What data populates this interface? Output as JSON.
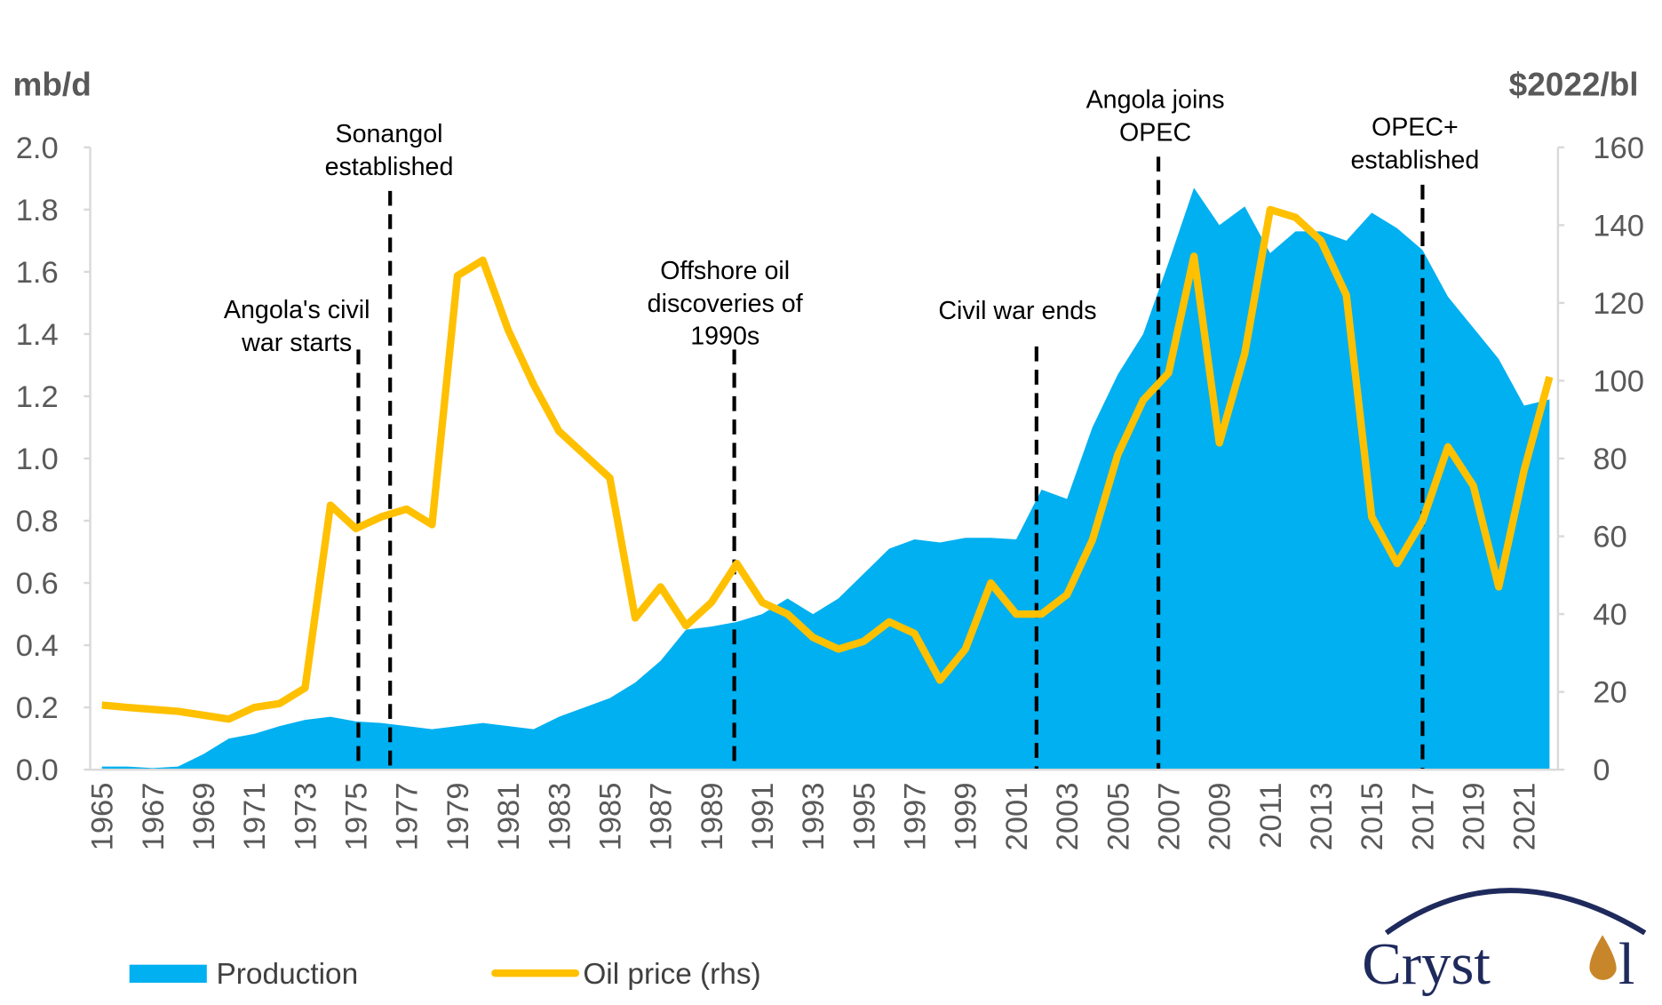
{
  "chart_data": {
    "type": "area+line",
    "left_axis_label": "mb/d",
    "right_axis_label": "$2022/bl",
    "ylim_left": [
      0,
      2.0
    ],
    "ylim_right": [
      0,
      160
    ],
    "yticks_left": [
      "0.0",
      "0.2",
      "0.4",
      "0.6",
      "0.8",
      "1.0",
      "1.2",
      "1.4",
      "1.6",
      "1.8",
      "2.0"
    ],
    "yticks_right": [
      "0",
      "20",
      "40",
      "60",
      "80",
      "100",
      "120",
      "140",
      "160"
    ],
    "x": [
      1965,
      1966,
      1967,
      1968,
      1969,
      1970,
      1971,
      1972,
      1973,
      1974,
      1975,
      1976,
      1977,
      1978,
      1979,
      1980,
      1981,
      1982,
      1983,
      1984,
      1985,
      1986,
      1987,
      1988,
      1989,
      1990,
      1991,
      1992,
      1993,
      1994,
      1995,
      1996,
      1997,
      1998,
      1999,
      2000,
      2001,
      2002,
      2003,
      2004,
      2005,
      2006,
      2007,
      2008,
      2009,
      2010,
      2011,
      2012,
      2013,
      2014,
      2015,
      2016,
      2017,
      2018,
      2019,
      2020,
      2021,
      2022
    ],
    "xtick_labels": [
      "1965",
      "1967",
      "1969",
      "1971",
      "1973",
      "1975",
      "1977",
      "1979",
      "1981",
      "1983",
      "1985",
      "1987",
      "1989",
      "1991",
      "1993",
      "1995",
      "1997",
      "1999",
      "2001",
      "2003",
      "2005",
      "2007",
      "2009",
      "2011",
      "2013",
      "2015",
      "2017",
      "2019",
      "2021"
    ],
    "series": [
      {
        "name": "Production",
        "type": "area",
        "axis": "left",
        "color": "#00B0F0",
        "values": [
          0.01,
          0.01,
          0.005,
          0.01,
          0.05,
          0.1,
          0.115,
          0.14,
          0.16,
          0.17,
          0.155,
          0.15,
          0.14,
          0.13,
          0.14,
          0.15,
          0.14,
          0.13,
          0.17,
          0.2,
          0.23,
          0.28,
          0.35,
          0.45,
          0.46,
          0.475,
          0.5,
          0.55,
          0.5,
          0.55,
          0.63,
          0.71,
          0.74,
          0.73,
          0.745,
          0.745,
          0.74,
          0.9,
          0.87,
          1.1,
          1.27,
          1.4,
          1.63,
          1.87,
          1.75,
          1.81,
          1.66,
          1.73,
          1.73,
          1.7,
          1.79,
          1.74,
          1.67,
          1.52,
          1.42,
          1.32,
          1.17,
          1.19
        ]
      },
      {
        "name": "Oil price (rhs)",
        "type": "line",
        "axis": "right",
        "color": "#FFC000",
        "values": [
          16.6,
          16,
          15.5,
          15,
          14,
          13,
          16,
          17,
          21,
          68,
          62,
          65,
          67,
          63,
          127,
          131,
          113,
          99,
          87,
          81,
          75,
          39,
          47,
          37,
          43,
          53,
          43,
          40,
          34,
          31,
          33,
          38,
          35,
          23,
          31,
          48,
          40,
          40,
          45,
          59,
          81,
          95,
          102,
          132,
          84,
          107,
          144,
          142,
          136,
          122,
          65,
          53,
          64,
          83,
          73,
          47,
          77,
          101
        ]
      }
    ],
    "annotations": [
      {
        "year": 1975.1,
        "top": 1.35,
        "lines": [
          "Angola's civil",
          "war starts"
        ]
      },
      {
        "year": 1976.35,
        "top": 1.86,
        "lines": [
          "Sonangol",
          "established"
        ]
      },
      {
        "year": 1989.9,
        "top": 1.35,
        "lines": [
          "Offshore oil",
          "discoveries of",
          "1990s"
        ]
      },
      {
        "year": 2001.8,
        "top": 1.36,
        "lines": [
          "Civil war ends"
        ]
      },
      {
        "year": 2006.6,
        "top": 1.97,
        "lines": [
          "Angola joins",
          "OPEC"
        ]
      },
      {
        "year": 2017.0,
        "top": 1.88,
        "lines": [
          "OPEC+",
          "established"
        ]
      }
    ],
    "legend": {
      "placement": "bottom-left",
      "entries": [
        "Production",
        "Oil price (rhs)"
      ]
    }
  },
  "logo": {
    "text": "Crystol"
  }
}
